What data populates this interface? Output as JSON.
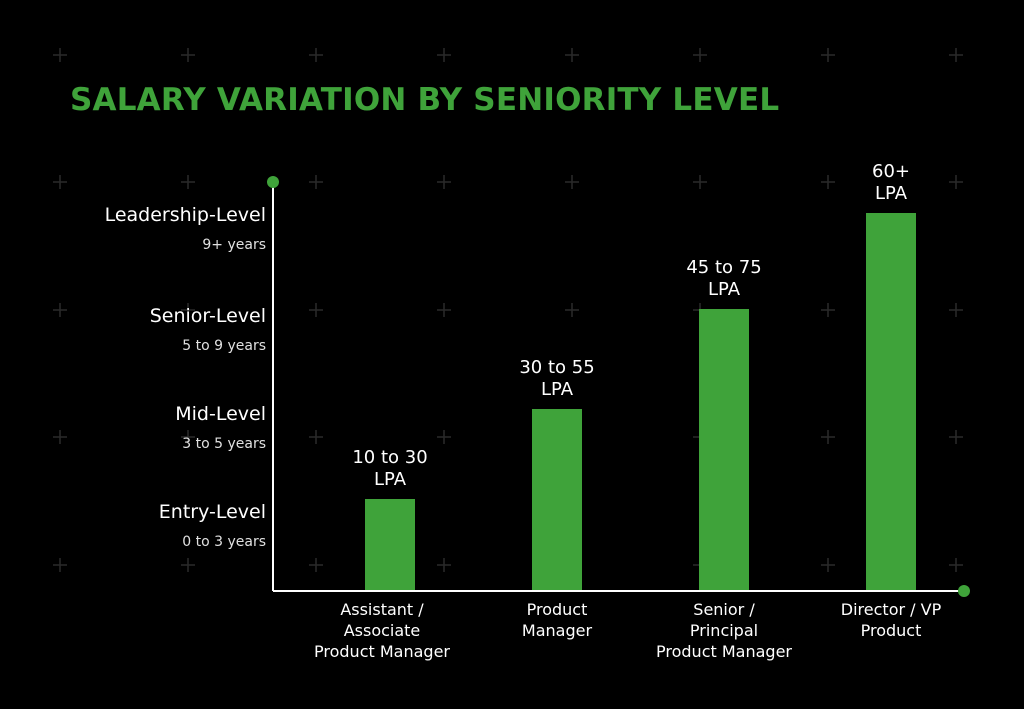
{
  "title": "SALARY VARIATION BY SENIORITY LEVEL",
  "colors": {
    "background": "#000000",
    "accent": "#3FA33A",
    "axis": "#FFFFFF",
    "text": "#FFFFFF"
  },
  "chart_data": {
    "type": "bar",
    "title": "SALARY VARIATION BY SENIORITY LEVEL",
    "y_levels": [
      {
        "level": "Entry-Level",
        "years": "0 to 3 years"
      },
      {
        "level": "Mid-Level",
        "years": "3 to 5 years"
      },
      {
        "level": "Senior-Level",
        "years": "5 to 9 years"
      },
      {
        "level": "Leadership-Level",
        "years": "9+ years"
      }
    ],
    "categories": [
      [
        "Assistant /",
        "Associate",
        "Product Manager"
      ],
      [
        "Product",
        "Manager"
      ],
      [
        "Senior /",
        "Principal",
        "Product Manager"
      ],
      [
        "Director / VP",
        "Product"
      ]
    ],
    "values": [
      1,
      2,
      3,
      4
    ],
    "data_labels": [
      [
        "10 to 30",
        "LPA"
      ],
      [
        "30 to 55",
        "LPA"
      ],
      [
        "45 to 75",
        "LPA"
      ],
      [
        "60+",
        "LPA"
      ]
    ],
    "grid": false
  }
}
